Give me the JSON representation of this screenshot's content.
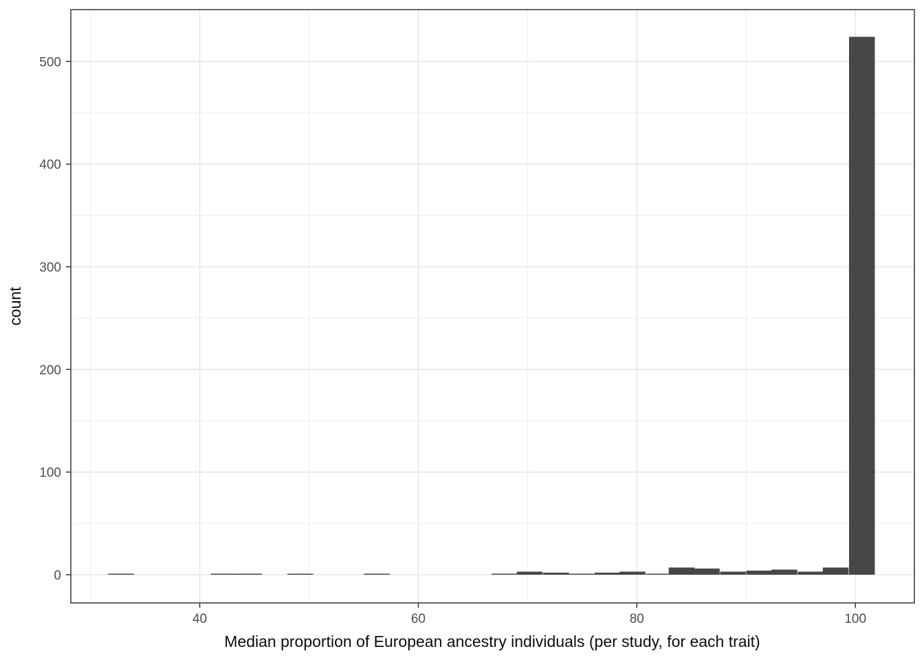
{
  "figure": {
    "background": "#ffffff",
    "panel_background": "#ffffff"
  },
  "chart_data": {
    "type": "bar",
    "subtype": "histogram",
    "title": "",
    "xlabel": "Median proportion of European ancestry individuals (per study, for each trait)",
    "ylabel": "count",
    "xlim": [
      28.2,
      105.4
    ],
    "ylim": [
      -27.5,
      550.5
    ],
    "x_major_ticks": [
      40,
      60,
      80,
      100
    ],
    "x_minor_gridlines": [
      30,
      50,
      70,
      90
    ],
    "y_major_ticks": [
      0,
      100,
      200,
      300,
      400,
      500
    ],
    "y_minor_gridlines": [
      50,
      150,
      250,
      350,
      450
    ],
    "grid": true,
    "legend": "none",
    "bin_half_width": 1.18,
    "bins": [
      {
        "x": 32.8,
        "count": 1
      },
      {
        "x": 42.2,
        "count": 1
      },
      {
        "x": 44.5,
        "count": 1
      },
      {
        "x": 49.2,
        "count": 1
      },
      {
        "x": 56.2,
        "count": 1
      },
      {
        "x": 67.9,
        "count": 1
      },
      {
        "x": 70.2,
        "count": 3
      },
      {
        "x": 72.6,
        "count": 2
      },
      {
        "x": 74.9,
        "count": 1
      },
      {
        "x": 77.3,
        "count": 2
      },
      {
        "x": 79.6,
        "count": 3
      },
      {
        "x": 82.0,
        "count": 1
      },
      {
        "x": 84.1,
        "count": 7
      },
      {
        "x": 86.4,
        "count": 6
      },
      {
        "x": 88.8,
        "count": 3
      },
      {
        "x": 91.2,
        "count": 4
      },
      {
        "x": 93.5,
        "count": 5
      },
      {
        "x": 95.9,
        "count": 3
      },
      {
        "x": 98.2,
        "count": 7
      },
      {
        "x": 100.6,
        "count": 524
      }
    ],
    "colors": {
      "bar_fill": "#474747",
      "panel_border": "#333333",
      "major_gridline": "#e5e5e5",
      "minor_gridline": "#efefef",
      "tick_mark": "#333333",
      "tick_label": "#4d4d4d",
      "axis_title": "#0d0d0d"
    }
  }
}
